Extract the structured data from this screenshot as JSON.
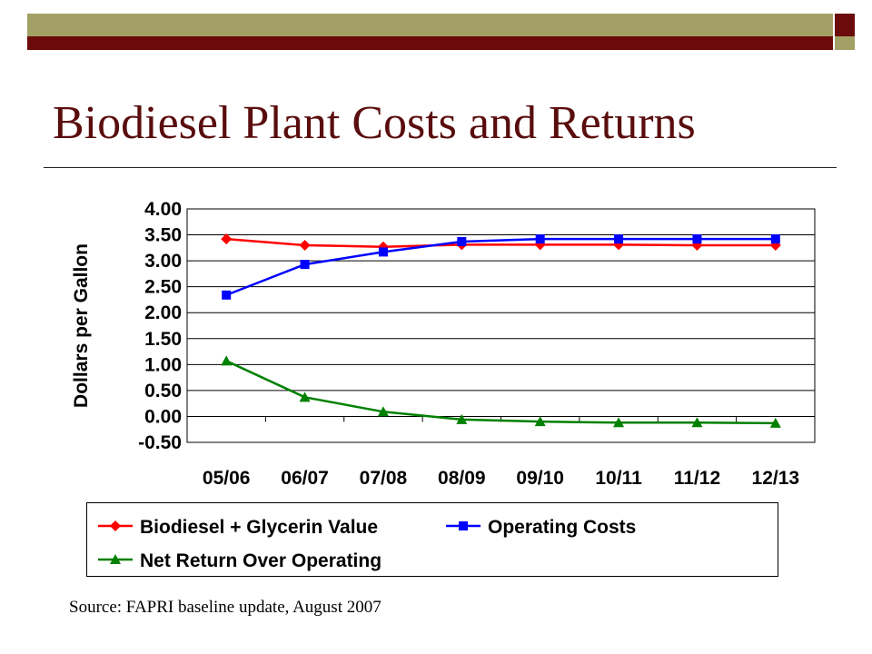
{
  "slide": {
    "title": "Biodiesel Plant Costs and Returns",
    "source": "Source: FAPRI baseline update, August 2007",
    "colors": {
      "olive": "#a3a065",
      "maroon": "#6b0a0a",
      "title": "#5a0d0d"
    }
  },
  "chart_data": {
    "type": "line",
    "title": "",
    "xlabel": "",
    "ylabel": "Dollars per Gallon",
    "ylim": [
      -0.5,
      4.0
    ],
    "yticks": [
      "4.00",
      "3.50",
      "3.00",
      "2.50",
      "2.00",
      "1.50",
      "1.00",
      "0.50",
      "0.00",
      "-0.50"
    ],
    "categories": [
      "05/06",
      "06/07",
      "07/08",
      "08/09",
      "09/10",
      "10/11",
      "11/12",
      "12/13"
    ],
    "grid": true,
    "legend_position": "bottom",
    "series": [
      {
        "name": "Biodiesel + Glycerin Value",
        "color": "#ff0000",
        "marker": "diamond",
        "values": [
          3.42,
          3.3,
          3.27,
          3.31,
          3.31,
          3.31,
          3.3,
          3.3
        ]
      },
      {
        "name": "Operating Costs",
        "color": "#0000ff",
        "marker": "square",
        "values": [
          2.34,
          2.93,
          3.17,
          3.37,
          3.42,
          3.42,
          3.42,
          3.42
        ]
      },
      {
        "name": "Net Return Over Operating",
        "color": "#008000",
        "marker": "triangle",
        "values": [
          1.07,
          0.37,
          0.09,
          -0.06,
          -0.1,
          -0.12,
          -0.12,
          -0.13
        ]
      }
    ]
  }
}
